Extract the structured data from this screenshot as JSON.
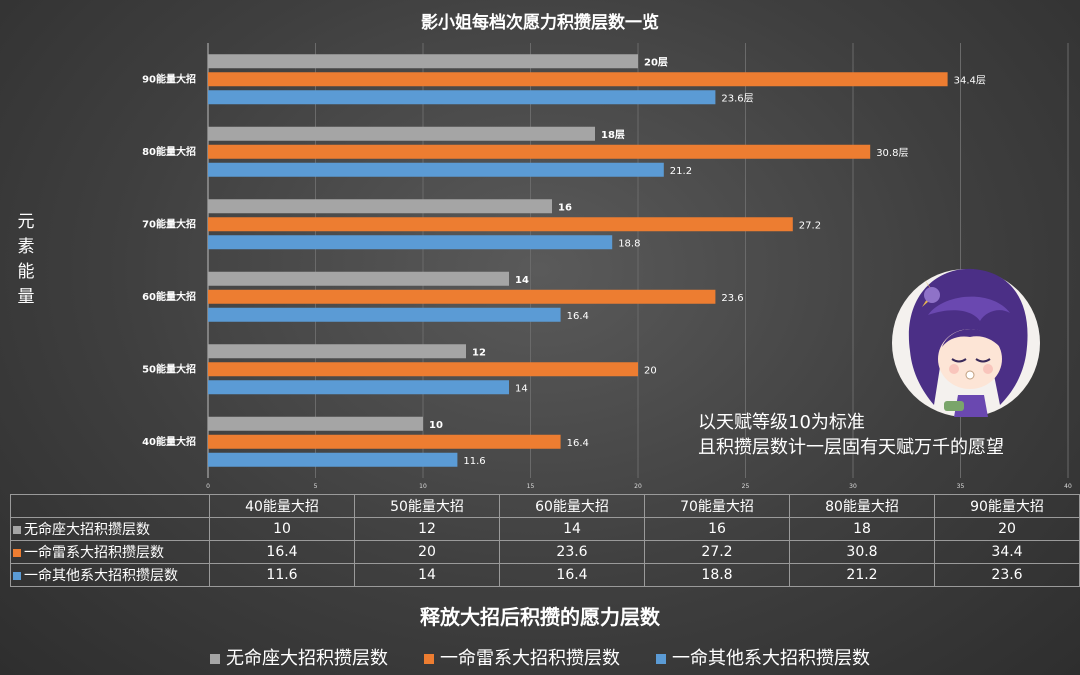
{
  "chart_data": {
    "type": "bar",
    "orientation": "horizontal",
    "title": "影小姐每档次愿力积攒层数一览",
    "ylabel": "元素能量",
    "xlabel": "释放大招后积攒的愿力层数",
    "xlim": [
      0,
      40
    ],
    "xticks": [
      0,
      5,
      10,
      15,
      20,
      25,
      30,
      35,
      40
    ],
    "categories": [
      "40能量大招",
      "50能量大招",
      "60能量大招",
      "70能量大招",
      "80能量大招",
      "90能量大招"
    ],
    "axis_categories": [
      "40能量大招",
      "50能量大招",
      "60能量大招",
      "70能量大招",
      "80能量大招",
      "90能量大招"
    ],
    "series": [
      {
        "name": "无命座大招积攒层数",
        "color": "#a5a5a5",
        "values": [
          10,
          12,
          14,
          16,
          18,
          20
        ],
        "labels": [
          "10",
          "12",
          "14",
          "16",
          "18层",
          "20层"
        ]
      },
      {
        "name": "一命雷系大招积攒层数",
        "color": "#ed7d31",
        "values": [
          16.4,
          20,
          23.6,
          27.2,
          30.8,
          34.4
        ],
        "labels": [
          "16.4",
          "20",
          "23.6",
          "27.2",
          "30.8层",
          "34.4层"
        ]
      },
      {
        "name": "一命其他系大招积攒层数",
        "color": "#5b9bd5",
        "values": [
          11.6,
          14,
          16.4,
          18.8,
          21.2,
          23.6
        ],
        "labels": [
          "11.6",
          "14",
          "16.4",
          "18.8",
          "21.2",
          "23.6层"
        ]
      }
    ],
    "legend": "bottom",
    "grid": true
  },
  "annotation": [
    "以天赋等级10为标准",
    "且积攒层数计一层固有天赋万千的愿望"
  ]
}
